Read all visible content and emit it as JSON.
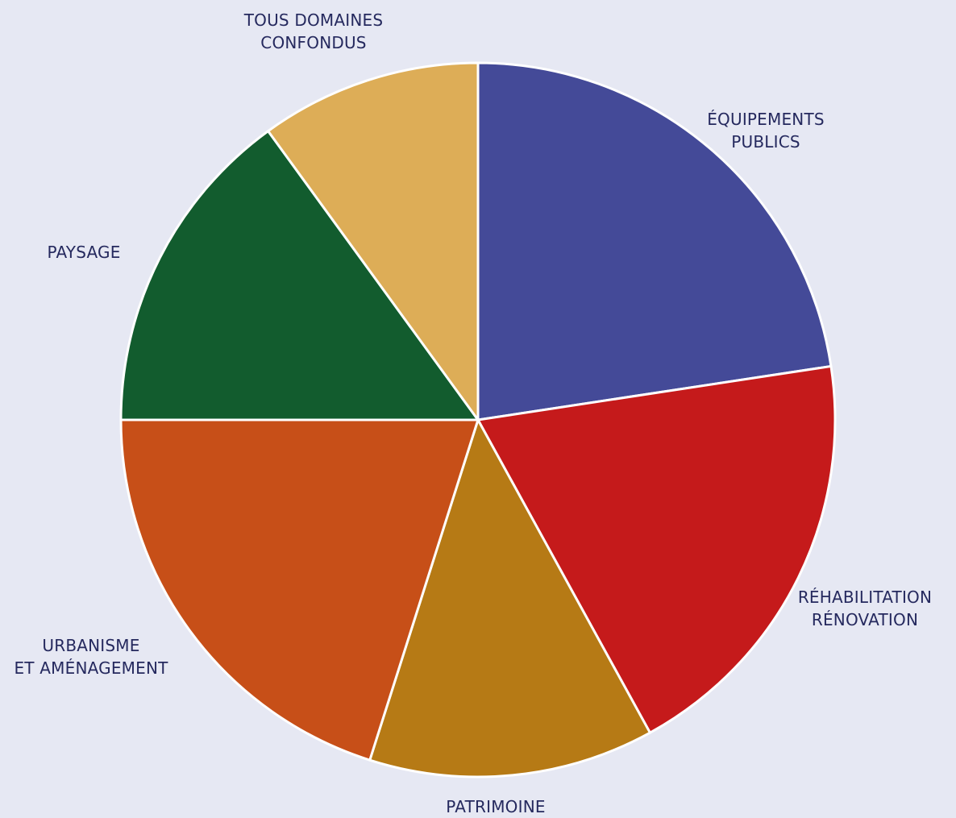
{
  "chart_data": {
    "type": "pie",
    "start_angle_deg": 0,
    "direction": "clockwise",
    "slices": [
      {
        "label_lines": [
          "ÉQUIPEMENTS",
          "PUBLICS"
        ],
        "value": 22.6,
        "color": "#444a98"
      },
      {
        "label_lines": [
          "RÉHABILITATION",
          "RÉNOVATION"
        ],
        "value": 19.4,
        "color": "#c51a1b"
      },
      {
        "label_lines": [
          "PATRIMOINE"
        ],
        "value": 12.9,
        "color": "#b67a15"
      },
      {
        "label_lines": [
          "URBANISME",
          "ET AMÉNAGEMENT"
        ],
        "value": 20.1,
        "color": "#c74f18"
      },
      {
        "label_lines": [
          "PAYSAGE"
        ],
        "value": 15.0,
        "color": "#125c2e"
      },
      {
        "label_lines": [
          "TOUS DOMAINES",
          "CONFONDUS"
        ],
        "value": 10.0,
        "color": "#ddad57"
      }
    ]
  }
}
